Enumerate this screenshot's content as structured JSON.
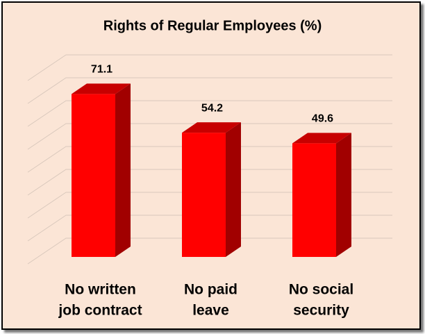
{
  "chart_data": {
    "type": "bar3d",
    "title": "Rights of Regular Employees (%)",
    "categories": [
      [
        "No written",
        "job contract"
      ],
      [
        "No paid",
        "leave"
      ],
      [
        "No social",
        "security"
      ]
    ],
    "values": [
      71.1,
      54.2,
      49.6
    ],
    "color": "#ff0000",
    "ylim": [
      0,
      80
    ],
    "yticks": [
      0,
      10,
      20,
      30,
      40,
      50,
      60,
      70,
      80
    ],
    "grid": true
  }
}
